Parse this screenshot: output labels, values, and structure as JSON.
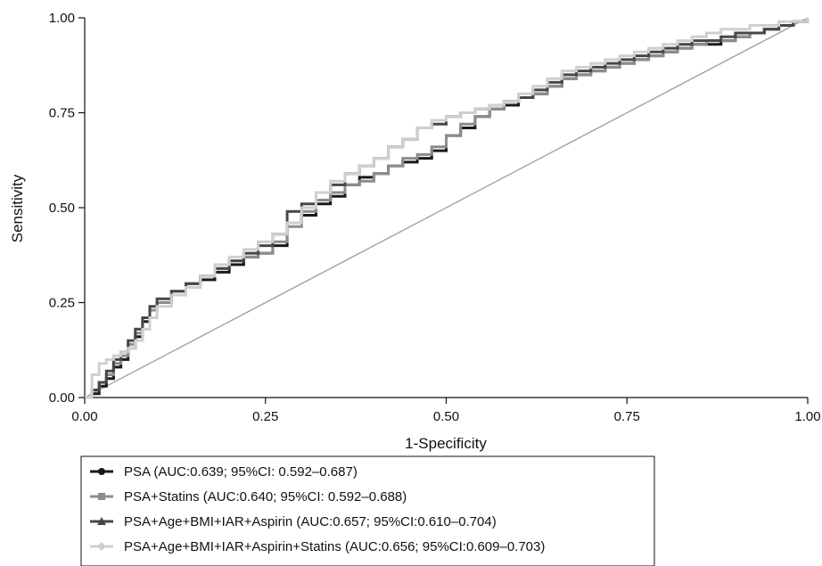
{
  "chart_data": {
    "type": "line",
    "title": "",
    "xlabel": "1-Specificity",
    "ylabel": "Sensitivity",
    "xlim": [
      0,
      1
    ],
    "ylim": [
      0,
      1
    ],
    "x_ticks": [
      "0.00",
      "0.25",
      "0.50",
      "0.75",
      "1.00"
    ],
    "y_ticks": [
      "0.00",
      "0.25",
      "0.50",
      "0.75",
      "1.00"
    ],
    "grid": false,
    "legend_position": "bottom-left",
    "reference_line": {
      "x": [
        0,
        1
      ],
      "y": [
        0,
        1
      ],
      "color": "#a8a8a8"
    },
    "series": [
      {
        "name": "PSA (AUC:0.639; 95%CI: 0.592–0.687)",
        "color": "#1a1a1a",
        "marker": "circle",
        "x": [
          0,
          0.01,
          0.02,
          0.03,
          0.04,
          0.05,
          0.06,
          0.07,
          0.08,
          0.09,
          0.1,
          0.12,
          0.14,
          0.16,
          0.18,
          0.2,
          0.22,
          0.24,
          0.26,
          0.28,
          0.3,
          0.32,
          0.34,
          0.36,
          0.38,
          0.4,
          0.42,
          0.44,
          0.46,
          0.48,
          0.5,
          0.52,
          0.54,
          0.56,
          0.58,
          0.6,
          0.62,
          0.64,
          0.66,
          0.68,
          0.7,
          0.72,
          0.74,
          0.76,
          0.78,
          0.8,
          0.82,
          0.84,
          0.86,
          0.88,
          0.9,
          0.92,
          0.94,
          0.96,
          0.98,
          1.0
        ],
        "y": [
          0,
          0.01,
          0.03,
          0.05,
          0.08,
          0.1,
          0.13,
          0.16,
          0.2,
          0.23,
          0.25,
          0.27,
          0.3,
          0.31,
          0.33,
          0.35,
          0.37,
          0.38,
          0.4,
          0.46,
          0.48,
          0.51,
          0.53,
          0.56,
          0.58,
          0.59,
          0.61,
          0.62,
          0.63,
          0.65,
          0.69,
          0.71,
          0.74,
          0.76,
          0.77,
          0.79,
          0.8,
          0.82,
          0.84,
          0.85,
          0.86,
          0.87,
          0.88,
          0.89,
          0.9,
          0.91,
          0.92,
          0.93,
          0.93,
          0.94,
          0.95,
          0.96,
          0.97,
          0.98,
          0.99,
          1.0
        ]
      },
      {
        "name": "PSA+Statins (AUC:0.640; 95%CI: 0.592–0.688)",
        "color": "#8c8c8c",
        "marker": "square",
        "x": [
          0,
          0.01,
          0.02,
          0.03,
          0.04,
          0.05,
          0.06,
          0.07,
          0.08,
          0.09,
          0.1,
          0.12,
          0.14,
          0.16,
          0.18,
          0.2,
          0.22,
          0.24,
          0.26,
          0.28,
          0.3,
          0.32,
          0.34,
          0.36,
          0.38,
          0.4,
          0.42,
          0.44,
          0.46,
          0.48,
          0.5,
          0.52,
          0.54,
          0.56,
          0.58,
          0.6,
          0.62,
          0.64,
          0.66,
          0.68,
          0.7,
          0.72,
          0.74,
          0.76,
          0.78,
          0.8,
          0.82,
          0.84,
          0.86,
          0.88,
          0.9,
          0.92,
          0.94,
          0.96,
          0.98,
          1.0
        ],
        "y": [
          0,
          0.02,
          0.04,
          0.06,
          0.09,
          0.11,
          0.14,
          0.17,
          0.21,
          0.23,
          0.25,
          0.28,
          0.3,
          0.32,
          0.34,
          0.36,
          0.37,
          0.38,
          0.41,
          0.45,
          0.49,
          0.52,
          0.54,
          0.56,
          0.57,
          0.59,
          0.61,
          0.63,
          0.64,
          0.66,
          0.69,
          0.72,
          0.74,
          0.76,
          0.78,
          0.79,
          0.8,
          0.82,
          0.84,
          0.85,
          0.86,
          0.87,
          0.88,
          0.89,
          0.9,
          0.91,
          0.92,
          0.93,
          0.94,
          0.94,
          0.95,
          0.96,
          0.97,
          0.98,
          0.99,
          1.0
        ]
      },
      {
        "name": "PSA+Age+BMI+IAR+Aspirin (AUC:0.657; 95%CI:0.610–0.704)",
        "color": "#474747",
        "marker": "triangle",
        "x": [
          0,
          0.01,
          0.02,
          0.03,
          0.04,
          0.05,
          0.06,
          0.07,
          0.08,
          0.09,
          0.1,
          0.12,
          0.14,
          0.16,
          0.18,
          0.2,
          0.22,
          0.24,
          0.26,
          0.28,
          0.3,
          0.32,
          0.34,
          0.36,
          0.38,
          0.4,
          0.42,
          0.44,
          0.46,
          0.48,
          0.5,
          0.52,
          0.54,
          0.56,
          0.58,
          0.6,
          0.62,
          0.64,
          0.66,
          0.68,
          0.7,
          0.72,
          0.74,
          0.76,
          0.78,
          0.8,
          0.82,
          0.84,
          0.86,
          0.88,
          0.9,
          0.92,
          0.94,
          0.96,
          0.98,
          1.0
        ],
        "y": [
          0,
          0.02,
          0.04,
          0.07,
          0.1,
          0.12,
          0.15,
          0.18,
          0.21,
          0.24,
          0.26,
          0.28,
          0.3,
          0.32,
          0.34,
          0.36,
          0.38,
          0.4,
          0.43,
          0.49,
          0.51,
          0.54,
          0.56,
          0.59,
          0.61,
          0.63,
          0.66,
          0.68,
          0.71,
          0.72,
          0.74,
          0.75,
          0.76,
          0.77,
          0.78,
          0.79,
          0.81,
          0.83,
          0.85,
          0.86,
          0.87,
          0.88,
          0.89,
          0.9,
          0.91,
          0.92,
          0.93,
          0.94,
          0.94,
          0.95,
          0.96,
          0.96,
          0.97,
          0.98,
          0.99,
          1.0
        ]
      },
      {
        "name": "PSA+Age+BMI+IAR+Aspirin+Statins (AUC:0.656; 95%CI:0.609–0.703)",
        "color": "#cfcfcf",
        "marker": "diamond",
        "x": [
          0,
          0.01,
          0.02,
          0.03,
          0.04,
          0.05,
          0.06,
          0.07,
          0.08,
          0.09,
          0.1,
          0.12,
          0.14,
          0.16,
          0.18,
          0.2,
          0.22,
          0.24,
          0.26,
          0.28,
          0.3,
          0.32,
          0.34,
          0.36,
          0.38,
          0.4,
          0.42,
          0.44,
          0.46,
          0.48,
          0.5,
          0.52,
          0.54,
          0.56,
          0.58,
          0.6,
          0.62,
          0.64,
          0.66,
          0.68,
          0.7,
          0.72,
          0.74,
          0.76,
          0.78,
          0.8,
          0.82,
          0.84,
          0.86,
          0.88,
          0.9,
          0.92,
          0.94,
          0.96,
          0.98,
          1.0
        ],
        "y": [
          0,
          0.06,
          0.09,
          0.1,
          0.11,
          0.12,
          0.13,
          0.15,
          0.18,
          0.21,
          0.24,
          0.27,
          0.29,
          0.32,
          0.35,
          0.37,
          0.39,
          0.41,
          0.43,
          0.46,
          0.5,
          0.54,
          0.57,
          0.59,
          0.61,
          0.63,
          0.66,
          0.68,
          0.71,
          0.73,
          0.74,
          0.75,
          0.76,
          0.77,
          0.78,
          0.8,
          0.82,
          0.84,
          0.86,
          0.87,
          0.88,
          0.89,
          0.9,
          0.91,
          0.92,
          0.93,
          0.94,
          0.95,
          0.96,
          0.97,
          0.97,
          0.98,
          0.98,
          0.99,
          0.99,
          1.0
        ]
      }
    ]
  }
}
